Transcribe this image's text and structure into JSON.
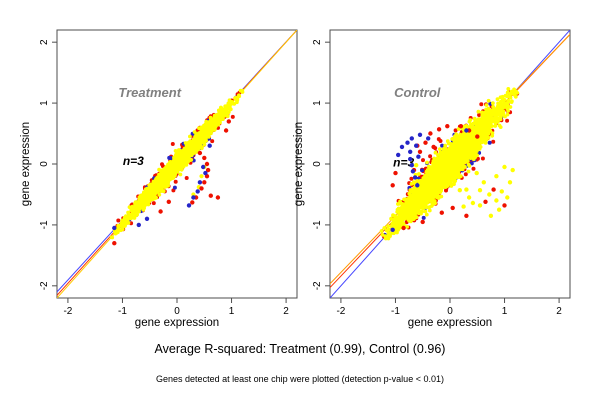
{
  "figure": {
    "background": "#ffffff",
    "captions": {
      "r_squared": "Average R-squared: Treatment (0.99), Control (0.96)",
      "note": "Genes detected at least one chip were plotted (detection p-value < 0.01)"
    }
  },
  "palette": {
    "chip_red": "#ee1100",
    "chip_blue": "#2525c8",
    "chip_yellow": "#ffff00",
    "fit_blue": "#4545ff",
    "fit_red": "#ff3300",
    "fit_yellow": "#ffcc00",
    "fit_orange": "#ff9900",
    "box": "#4d4d4d",
    "title_gray": "#808080",
    "text": "#000000"
  },
  "chart_data": [
    {
      "type": "scatter",
      "panel": "treatment",
      "title": "Treatment",
      "annotation": "n=3",
      "xlabel": "gene expression",
      "ylabel": "gene expression",
      "xlim": [
        -2.2,
        2.2
      ],
      "ylim": [
        -2.2,
        2.2
      ],
      "xticks": [
        -2,
        -1,
        0,
        1,
        2
      ],
      "yticks": [
        -2,
        -1,
        0,
        1,
        2
      ],
      "grid": false,
      "title_pos": [
        -0.5,
        1.1
      ],
      "annotation_pos": [
        -0.8,
        -0.02
      ],
      "fit_lines": [
        {
          "name": "fit-chip-blue",
          "color_key": "fit_blue",
          "point": [
            2.2,
            2.2
          ],
          "slope": 0.977
        },
        {
          "name": "fit-chip-red",
          "color_key": "fit_red",
          "point": [
            2.2,
            2.2
          ],
          "slope": 0.99
        },
        {
          "name": "fit-chip-yellow",
          "color_key": "fit_yellow",
          "point": [
            2.2,
            2.2
          ],
          "slope": 1.0
        }
      ],
      "clouds": [
        {
          "name": "chip-red-points",
          "color_key": "chip_red",
          "n": 280,
          "extent": 1.2,
          "spread": 0.085,
          "radius": 2.0,
          "seed": 11
        },
        {
          "name": "chip-blue-points",
          "color_key": "chip_blue",
          "n": 130,
          "extent": 1.18,
          "spread": 0.075,
          "radius": 2.0,
          "seed": 22
        },
        {
          "name": "chip-yellow-points",
          "color_key": "chip_yellow",
          "n": 2300,
          "extent": 1.2,
          "spread": 0.05,
          "radius": 1.9,
          "seed": 33
        }
      ],
      "outliers": [
        {
          "name": "yellow-outliers",
          "color_key": "chip_yellow",
          "radius": 2.1,
          "points": [
            [
              0.5,
              -0.05
            ],
            [
              0.45,
              -0.2
            ],
            [
              0.4,
              -0.38
            ],
            [
              0.3,
              -0.5
            ]
          ]
        },
        {
          "name": "red-outliers",
          "color_key": "chip_red",
          "radius": 2.2,
          "points": [
            [
              0.42,
              0.18
            ],
            [
              0.5,
              0.1
            ],
            [
              0.55,
              0.0
            ],
            [
              0.57,
              -0.1
            ],
            [
              0.55,
              -0.2
            ],
            [
              0.5,
              -0.3
            ],
            [
              0.45,
              -0.4
            ],
            [
              0.62,
              -0.52
            ],
            [
              0.75,
              -0.55
            ],
            [
              0.35,
              -0.55
            ],
            [
              0.28,
              -0.63
            ],
            [
              0.9,
              0.55
            ],
            [
              0.95,
              0.7
            ],
            [
              -0.15,
              -0.62
            ],
            [
              -0.3,
              -0.78
            ],
            [
              -1.15,
              -1.3
            ]
          ]
        },
        {
          "name": "blue-outliers",
          "color_key": "chip_blue",
          "radius": 2.2,
          "points": [
            [
              0.48,
              -0.05
            ],
            [
              0.52,
              -0.15
            ],
            [
              0.42,
              -0.3
            ],
            [
              0.38,
              -0.45
            ],
            [
              0.3,
              -0.55
            ],
            [
              0.22,
              -0.68
            ],
            [
              0.6,
              0.3
            ],
            [
              -0.55,
              -0.9
            ],
            [
              -0.7,
              -1.0
            ],
            [
              -1.15,
              -1.05
            ]
          ]
        }
      ]
    },
    {
      "type": "scatter",
      "panel": "control",
      "title": "Control",
      "annotation": "n=3",
      "xlabel": "gene expression",
      "ylabel": "gene expression",
      "xlim": [
        -2.2,
        2.2
      ],
      "ylim": [
        -2.2,
        2.2
      ],
      "xticks": [
        -2,
        -1,
        0,
        1,
        2
      ],
      "yticks": [
        -2,
        -1,
        0,
        1,
        2
      ],
      "grid": false,
      "title_pos": [
        -0.6,
        1.1
      ],
      "annotation_pos": [
        -0.85,
        -0.04
      ],
      "fit_lines": [
        {
          "name": "fit-chip-blue",
          "color_key": "fit_blue",
          "point": [
            2.2,
            2.2
          ],
          "slope": 1.0
        },
        {
          "name": "fit-chip-red",
          "color_key": "fit_red",
          "point": [
            0.0,
            0.05
          ],
          "slope": 0.945
        },
        {
          "name": "fit-chip-orange",
          "color_key": "fit_orange",
          "point": [
            0.0,
            0.08
          ],
          "slope": 0.93
        }
      ],
      "clouds": [
        {
          "name": "chip-red-points",
          "color_key": "chip_red",
          "n": 430,
          "extent": 1.2,
          "spread": 0.16,
          "radius": 2.0,
          "seed": 44
        },
        {
          "name": "chip-blue-points",
          "color_key": "chip_blue",
          "n": 150,
          "extent": 1.18,
          "spread": 0.14,
          "radius": 2.0,
          "seed": 55
        },
        {
          "name": "chip-yellow-points",
          "color_key": "chip_yellow",
          "n": 3000,
          "extent": 1.2,
          "spread": 0.105,
          "radius": 1.9,
          "seed": 66
        }
      ],
      "outliers": [
        {
          "name": "yellow-outliers",
          "color_key": "chip_yellow",
          "radius": 2.2,
          "points": [
            [
              0.18,
              -0.43
            ],
            [
              0.42,
              -0.64
            ],
            [
              0.55,
              -0.43
            ],
            [
              0.49,
              -0.15
            ],
            [
              0.62,
              -0.3
            ],
            [
              0.72,
              -0.5
            ],
            [
              0.85,
              -0.6
            ],
            [
              0.95,
              -0.45
            ],
            [
              1.05,
              -0.55
            ],
            [
              1.1,
              -0.3
            ],
            [
              0.9,
              -0.75
            ],
            [
              0.75,
              -0.85
            ],
            [
              0.55,
              -0.68
            ],
            [
              0.35,
              -0.55
            ],
            [
              0.25,
              -0.7
            ],
            [
              1.15,
              -0.1
            ],
            [
              1.0,
              -0.05
            ],
            [
              0.85,
              -0.2
            ],
            [
              -0.62,
              -0.02
            ],
            [
              0.3,
              -0.42
            ]
          ]
        },
        {
          "name": "red-outliers",
          "color_key": "chip_red",
          "radius": 2.2,
          "points": [
            [
              -0.36,
              0.5
            ],
            [
              -0.2,
              0.57
            ],
            [
              -0.05,
              0.62
            ],
            [
              -0.45,
              0.35
            ],
            [
              -0.3,
              0.28
            ],
            [
              -0.55,
              0.2
            ],
            [
              -1.0,
              -0.15
            ],
            [
              -1.05,
              -0.35
            ],
            [
              0.2,
              0.62
            ],
            [
              0.35,
              0.55
            ],
            [
              0.5,
              0.45
            ],
            [
              -0.15,
              -0.8
            ],
            [
              0.05,
              -0.72
            ],
            [
              0.3,
              -0.85
            ],
            [
              -0.5,
              -0.95
            ],
            [
              -0.85,
              -1.05
            ],
            [
              0.65,
              -0.62
            ],
            [
              0.8,
              -0.42
            ],
            [
              1.0,
              -0.68
            ],
            [
              -0.66,
              -0.1
            ],
            [
              -0.6,
              0.3
            ]
          ]
        },
        {
          "name": "blue-outliers",
          "color_key": "chip_blue",
          "radius": 2.2,
          "points": [
            [
              -0.88,
              0.28
            ],
            [
              -0.78,
              0.35
            ],
            [
              -0.7,
              0.42
            ],
            [
              -0.73,
              0.2
            ],
            [
              -0.7,
              -0.02
            ],
            [
              -0.73,
              0.08
            ],
            [
              -0.68,
              -0.12
            ],
            [
              -0.62,
              0.3
            ],
            [
              -0.95,
              0.15
            ],
            [
              -0.55,
              0.48
            ],
            [
              -0.58,
              0.12
            ],
            [
              -0.64,
              -0.22
            ],
            [
              -0.6,
              -0.35
            ],
            [
              0.3,
              0.55
            ],
            [
              -0.4,
              0.42
            ],
            [
              -1.05,
              -1.08
            ]
          ]
        }
      ]
    }
  ]
}
